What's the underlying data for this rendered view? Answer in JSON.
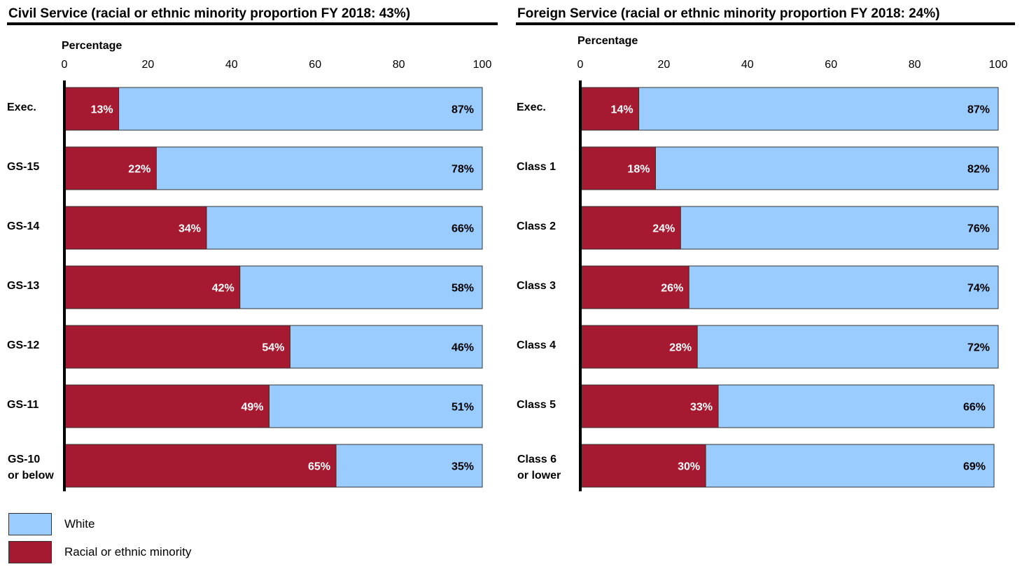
{
  "colors": {
    "minority": "#A51A30",
    "white": "#9ACCFF",
    "border": "#333333"
  },
  "legend": [
    {
      "label": "White",
      "color": "#9ACCFF"
    },
    {
      "label": "Racial or ethnic minority",
      "color": "#A51A30"
    }
  ],
  "chart_data": [
    {
      "type": "bar",
      "title": "Civil Service (racial or ethnic minority proportion FY 2018: 43%)",
      "xlabel": "Percentage",
      "xlim": [
        0,
        100
      ],
      "x_ticks": [
        "0",
        "20",
        "40",
        "60",
        "80",
        "100"
      ],
      "categories": [
        [
          "Exec."
        ],
        [
          "GS-15"
        ],
        [
          "GS-14"
        ],
        [
          "GS-13"
        ],
        [
          "GS-12"
        ],
        [
          "GS-11"
        ],
        [
          "GS-10",
          "or below"
        ]
      ],
      "series": [
        {
          "name": "Racial or ethnic minority",
          "values": [
            13,
            22,
            34,
            42,
            54,
            49,
            65
          ],
          "labels": [
            "13%",
            "22%",
            "34%",
            "42%",
            "54%",
            "49%",
            "65%"
          ]
        },
        {
          "name": "White",
          "values": [
            87,
            78,
            66,
            58,
            46,
            51,
            35
          ],
          "labels": [
            "87%",
            "78%",
            "66%",
            "58%",
            "46%",
            "51%",
            "35%"
          ]
        }
      ]
    },
    {
      "type": "bar",
      "title": "Foreign Service (racial or ethnic minority proportion FY 2018: 24%)",
      "xlabel": "Percentage",
      "xlim": [
        0,
        100
      ],
      "x_ticks": [
        "0",
        "20",
        "40",
        "60",
        "80",
        "100"
      ],
      "categories": [
        [
          "Exec."
        ],
        [
          "Class 1"
        ],
        [
          "Class 2"
        ],
        [
          "Class 3"
        ],
        [
          "Class 4"
        ],
        [
          "Class 5"
        ],
        [
          "Class 6",
          "or lower"
        ]
      ],
      "series": [
        {
          "name": "Racial or ethnic minority",
          "values": [
            14,
            18,
            24,
            26,
            28,
            33,
            30
          ],
          "labels": [
            "14%",
            "18%",
            "24%",
            "26%",
            "28%",
            "33%",
            "30%"
          ]
        },
        {
          "name": "White",
          "values": [
            87,
            82,
            76,
            74,
            72,
            66,
            69
          ],
          "labels": [
            "87%",
            "82%",
            "76%",
            "74%",
            "72%",
            "66%",
            "69%"
          ]
        }
      ]
    }
  ]
}
